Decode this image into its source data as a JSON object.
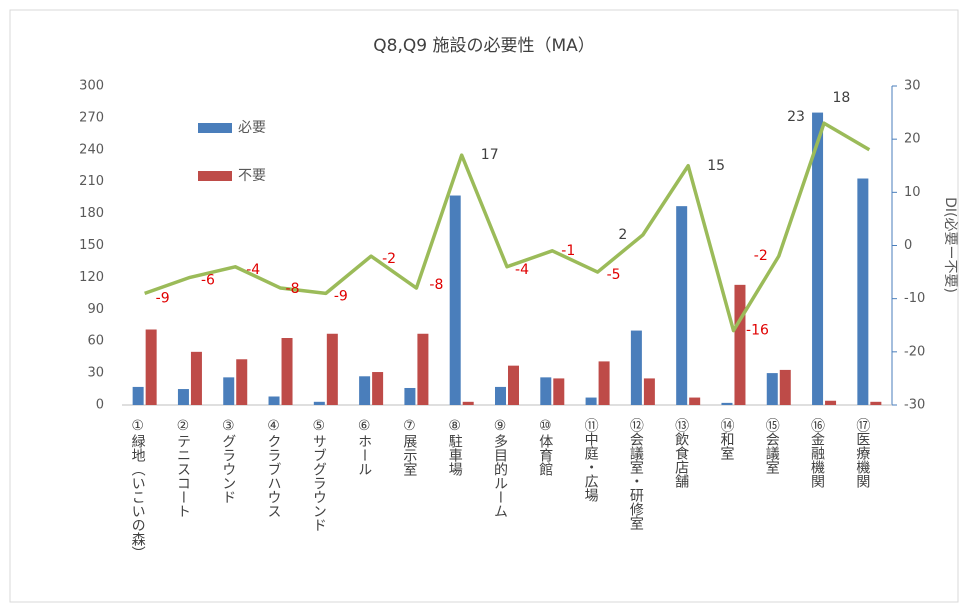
{
  "chart_data": {
    "type": "bar_line",
    "title": "Q8,Q9 施設の必要性（MA）",
    "y2label": "DI(必要ー不要)",
    "categories": [
      "①緑地（いこいの森）",
      "②テニスコート",
      "③グラウンド",
      "④クラブハウス",
      "⑤サブグラウンド",
      "⑥ホール",
      "⑦展示室",
      "⑧駐車場",
      "⑨多目的ルーム",
      "⑩体育館",
      "⑪中庭・広場",
      "⑫会議室・研修室",
      "⑬飲食店舗",
      "⑭和室",
      "⑮会議室",
      "⑯金融機関",
      "⑰医療機関"
    ],
    "series": [
      {
        "name": "必要",
        "color": "#4a7ebb",
        "type": "bar",
        "values": [
          17,
          15,
          26,
          8,
          3,
          27,
          16,
          197,
          17,
          26,
          7,
          70,
          187,
          2,
          30,
          275,
          213
        ]
      },
      {
        "name": "不要",
        "color": "#be4b48",
        "type": "bar",
        "values": [
          71,
          50,
          43,
          63,
          67,
          31,
          67,
          3,
          37,
          25,
          41,
          25,
          7,
          113,
          33,
          4,
          3
        ]
      },
      {
        "color": "#9bbb59",
        "type": "line",
        "axis": "y2",
        "values": [
          -9,
          -6,
          -4,
          -8,
          -9,
          -2,
          -8,
          17,
          -4,
          -1,
          -5,
          2,
          15,
          -16,
          -2,
          23,
          18
        ]
      }
    ],
    "ylim": [
      0,
      300
    ],
    "yticks": [
      0,
      30,
      60,
      90,
      120,
      150,
      180,
      210,
      240,
      270,
      300
    ],
    "y2lim": [
      -30,
      30
    ],
    "y2ticks": [
      -30,
      -20,
      -10,
      0,
      10,
      20,
      30
    ],
    "grid": false,
    "legend": "upper left"
  }
}
